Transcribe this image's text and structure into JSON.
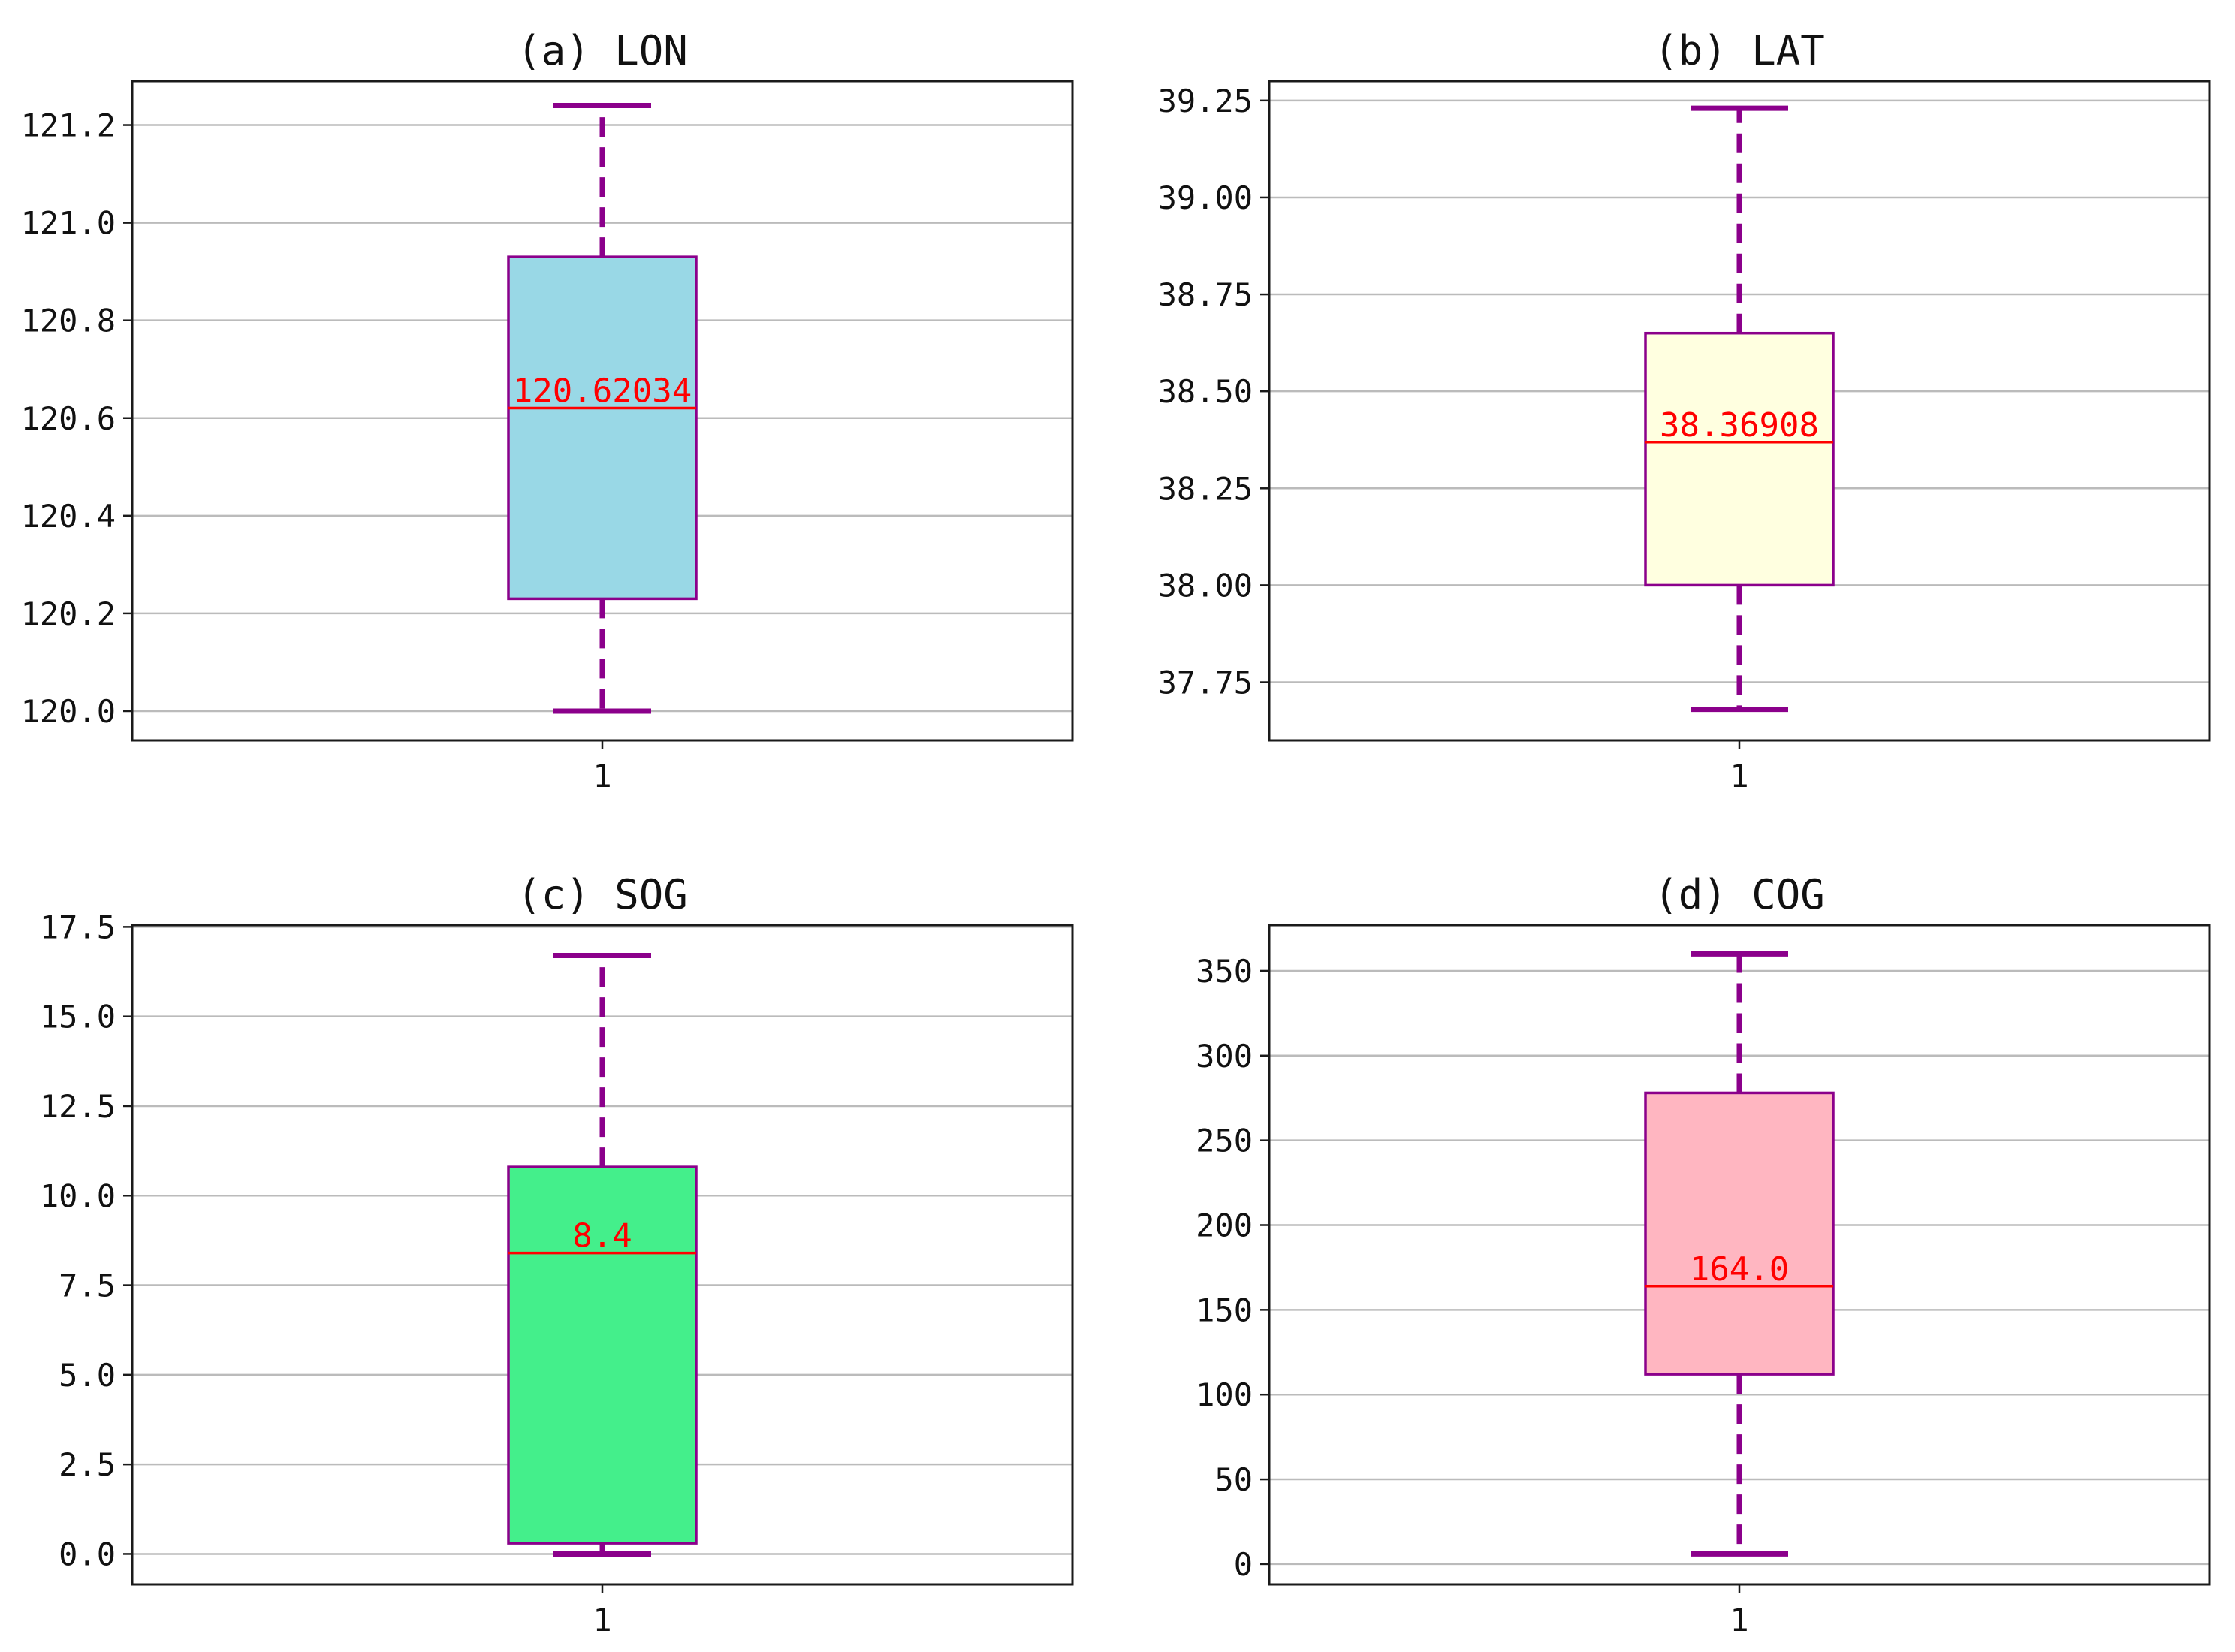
{
  "colors": {
    "frame": "#1a1a1a",
    "grid": "#bbbbbb",
    "box_edge": "#8b008b",
    "whisker": "#8b008b",
    "median": "#ff0000",
    "median_label": "#ff0000"
  },
  "chart_data": [
    {
      "type": "box",
      "title": "(a) LON",
      "categories": [
        "1"
      ],
      "ylim": [
        119.94,
        121.29
      ],
      "yticks": [
        120.0,
        120.2,
        120.4,
        120.6,
        120.8,
        121.0,
        121.2
      ],
      "ytick_labels": [
        "120.0",
        "120.2",
        "120.4",
        "120.6",
        "120.8",
        "121.0",
        "121.2"
      ],
      "whisker_low": 120.0,
      "q1": 120.23,
      "median": 120.62034,
      "q3": 120.93,
      "whisker_high": 121.24,
      "median_label": "120.62034",
      "fill": "#99d8e6",
      "grid": true
    },
    {
      "type": "box",
      "title": "(b) LAT",
      "categories": [
        "1"
      ],
      "ylim": [
        37.6,
        39.3
      ],
      "yticks": [
        37.75,
        38.0,
        38.25,
        38.5,
        38.75,
        39.0,
        39.25
      ],
      "ytick_labels": [
        "37.75",
        "38.00",
        "38.25",
        "38.50",
        "38.75",
        "39.00",
        "39.25"
      ],
      "whisker_low": 37.68,
      "q1": 38.0,
      "median": 38.36908,
      "q3": 38.65,
      "whisker_high": 39.23,
      "median_label": "38.36908",
      "fill": "#ffffe0",
      "grid": true
    },
    {
      "type": "box",
      "title": "(c) SOG",
      "categories": [
        "1"
      ],
      "ylim": [
        -0.85,
        17.55
      ],
      "yticks": [
        0.0,
        2.5,
        5.0,
        7.5,
        10.0,
        12.5,
        15.0,
        17.5
      ],
      "ytick_labels": [
        "0.0",
        "2.5",
        "5.0",
        "7.5",
        "10.0",
        "12.5",
        "15.0",
        "17.5"
      ],
      "whisker_low": 0.0,
      "q1": 0.3,
      "median": 8.4,
      "q3": 10.8,
      "whisker_high": 16.7,
      "median_label": "8.4",
      "fill": "#44ef8b",
      "grid": true
    },
    {
      "type": "box",
      "title": "(d) COG",
      "categories": [
        "1"
      ],
      "ylim": [
        -12,
        377
      ],
      "yticks": [
        0,
        50,
        100,
        150,
        200,
        250,
        300,
        350
      ],
      "ytick_labels": [
        "0",
        "50",
        "100",
        "150",
        "200",
        "250",
        "300",
        "350"
      ],
      "whisker_low": 6,
      "q1": 112,
      "median": 164.0,
      "q3": 278,
      "whisker_high": 360,
      "median_label": "164.0",
      "fill": "#ffb6c1",
      "grid": true
    }
  ]
}
